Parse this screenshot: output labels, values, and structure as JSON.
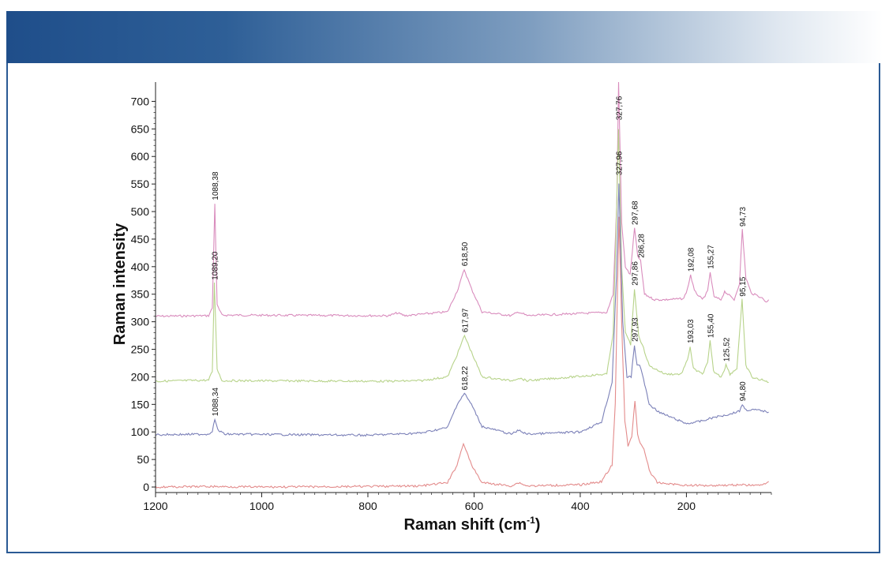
{
  "chart_data": {
    "type": "line",
    "xlabel": "Raman shift (cm",
    "xlabel_sup": "-1",
    "xlabel_end": ")",
    "ylabel": "Raman intensity",
    "xlim": [
      1200,
      40
    ],
    "ylim": [
      -10,
      735
    ],
    "x_ticks": [
      1200,
      1000,
      800,
      600,
      400,
      200
    ],
    "y_ticks": [
      0,
      50,
      100,
      150,
      200,
      250,
      300,
      350,
      400,
      450,
      500,
      550,
      600,
      650,
      700
    ],
    "grid": false,
    "series": [
      {
        "color": "#d98cbd",
        "points": [
          [
            1200,
            310
          ],
          [
            1100,
            311
          ],
          [
            1093,
            325
          ],
          [
            1088.38,
            515
          ],
          [
            1084,
            330
          ],
          [
            1075,
            312
          ],
          [
            760,
            311
          ],
          [
            745,
            316
          ],
          [
            730,
            311
          ],
          [
            650,
            318
          ],
          [
            630,
            360
          ],
          [
            618.5,
            395
          ],
          [
            605,
            360
          ],
          [
            585,
            318
          ],
          [
            530,
            311
          ],
          [
            516,
            318
          ],
          [
            500,
            311
          ],
          [
            350,
            317
          ],
          [
            338,
            350
          ],
          [
            331,
            520
          ],
          [
            327.76,
            735
          ],
          [
            322,
            480
          ],
          [
            315,
            400
          ],
          [
            306,
            385
          ],
          [
            297.68,
            470
          ],
          [
            292,
            420
          ],
          [
            286.28,
            410
          ],
          [
            279,
            350
          ],
          [
            260,
            340
          ],
          [
            240,
            340
          ],
          [
            205,
            342
          ],
          [
            198,
            360
          ],
          [
            192.08,
            385
          ],
          [
            185,
            356
          ],
          [
            170,
            340
          ],
          [
            160,
            355
          ],
          [
            155.27,
            390
          ],
          [
            148,
            345
          ],
          [
            135,
            340
          ],
          [
            128,
            355
          ],
          [
            122,
            350
          ],
          [
            110,
            340
          ],
          [
            100,
            370
          ],
          [
            94.73,
            467
          ],
          [
            88,
            380
          ],
          [
            78,
            352
          ],
          [
            60,
            345
          ],
          [
            50,
            336
          ],
          [
            45,
            340
          ]
        ]
      },
      {
        "color": "#b7d38a",
        "points": [
          [
            1200,
            192
          ],
          [
            1100,
            194
          ],
          [
            1093,
            210
          ],
          [
            1089.2,
            370
          ],
          [
            1084,
            215
          ],
          [
            1075,
            193
          ],
          [
            760,
            192
          ],
          [
            700,
            193
          ],
          [
            650,
            200
          ],
          [
            632,
            240
          ],
          [
            617.97,
            275
          ],
          [
            605,
            245
          ],
          [
            585,
            200
          ],
          [
            530,
            193
          ],
          [
            516,
            198
          ],
          [
            500,
            193
          ],
          [
            350,
            205
          ],
          [
            338,
            280
          ],
          [
            331,
            520
          ],
          [
            327.96,
            650
          ],
          [
            322,
            400
          ],
          [
            315,
            280
          ],
          [
            305,
            258
          ],
          [
            297.86,
            360
          ],
          [
            290,
            275
          ],
          [
            283,
            258
          ],
          [
            270,
            220
          ],
          [
            240,
            205
          ],
          [
            210,
            205
          ],
          [
            198,
            230
          ],
          [
            193.03,
            255
          ],
          [
            187,
            215
          ],
          [
            170,
            205
          ],
          [
            160,
            225
          ],
          [
            155.4,
            265
          ],
          [
            149,
            210
          ],
          [
            135,
            200
          ],
          [
            129,
            212
          ],
          [
            125.52,
            222
          ],
          [
            118,
            205
          ],
          [
            105,
            215
          ],
          [
            95.15,
            340
          ],
          [
            88,
            220
          ],
          [
            75,
            198
          ],
          [
            60,
            195
          ],
          [
            45,
            190
          ]
        ]
      },
      {
        "color": "#7b80b8",
        "points": [
          [
            1200,
            95
          ],
          [
            1100,
            96
          ],
          [
            1093,
            102
          ],
          [
            1088.34,
            123
          ],
          [
            1083,
            104
          ],
          [
            1070,
            96
          ],
          [
            800,
            94
          ],
          [
            700,
            98
          ],
          [
            650,
            108
          ],
          [
            632,
            150
          ],
          [
            618.22,
            170
          ],
          [
            605,
            150
          ],
          [
            585,
            110
          ],
          [
            530,
            96
          ],
          [
            516,
            103
          ],
          [
            500,
            96
          ],
          [
            400,
            100
          ],
          [
            360,
            118
          ],
          [
            340,
            190
          ],
          [
            332,
            380
          ],
          [
            327.2,
            550
          ],
          [
            320,
            300
          ],
          [
            312,
            200
          ],
          [
            304,
            200
          ],
          [
            297.93,
            258
          ],
          [
            293,
            220
          ],
          [
            288,
            222
          ],
          [
            283,
            205
          ],
          [
            270,
            150
          ],
          [
            250,
            135
          ],
          [
            200,
            115
          ],
          [
            170,
            120
          ],
          [
            150,
            126
          ],
          [
            120,
            132
          ],
          [
            100,
            138
          ],
          [
            94.8,
            150
          ],
          [
            88,
            140
          ],
          [
            70,
            140
          ],
          [
            55,
            138
          ],
          [
            45,
            136
          ]
        ]
      },
      {
        "color": "#e38b8b",
        "points": [
          [
            1200,
            0
          ],
          [
            1100,
            1
          ],
          [
            1000,
            0
          ],
          [
            800,
            1
          ],
          [
            700,
            2
          ],
          [
            650,
            8
          ],
          [
            632,
            40
          ],
          [
            620,
            80
          ],
          [
            605,
            40
          ],
          [
            585,
            8
          ],
          [
            530,
            2
          ],
          [
            516,
            8
          ],
          [
            500,
            2
          ],
          [
            400,
            4
          ],
          [
            360,
            10
          ],
          [
            340,
            40
          ],
          [
            334,
            150
          ],
          [
            331,
            300
          ],
          [
            327,
            490
          ],
          [
            322,
            300
          ],
          [
            316,
            120
          ],
          [
            310,
            75
          ],
          [
            303,
            90
          ],
          [
            297,
            158
          ],
          [
            292,
            95
          ],
          [
            287,
            80
          ],
          [
            280,
            70
          ],
          [
            270,
            30
          ],
          [
            255,
            8
          ],
          [
            200,
            3
          ],
          [
            150,
            3
          ],
          [
            100,
            4
          ],
          [
            60,
            3
          ],
          [
            45,
            10
          ]
        ]
      }
    ],
    "annotations": [
      {
        "text": "1088,38",
        "x": 1088.38,
        "y": 515
      },
      {
        "text": "1089,20",
        "x": 1089.2,
        "y": 370
      },
      {
        "text": "1088,34",
        "x": 1088.34,
        "y": 123
      },
      {
        "text": "618,50",
        "x": 618.5,
        "y": 395
      },
      {
        "text": "617,97",
        "x": 617.97,
        "y": 275
      },
      {
        "text": "618,22",
        "x": 618.22,
        "y": 170
      },
      {
        "text": "327,76",
        "x": 327.76,
        "y": 660
      },
      {
        "text": "327,96",
        "x": 327.96,
        "y": 560
      },
      {
        "text": "297,68",
        "x": 297.68,
        "y": 470
      },
      {
        "text": "286,28",
        "x": 286.28,
        "y": 410
      },
      {
        "text": "297,86",
        "x": 297.86,
        "y": 360
      },
      {
        "text": "297,93",
        "x": 297.93,
        "y": 258
      },
      {
        "text": "192,08",
        "x": 192.08,
        "y": 385
      },
      {
        "text": "155,27",
        "x": 155.27,
        "y": 390
      },
      {
        "text": "94,73",
        "x": 94.73,
        "y": 467
      },
      {
        "text": "95,15",
        "x": 95.15,
        "y": 340
      },
      {
        "text": "193,03",
        "x": 193.03,
        "y": 255
      },
      {
        "text": "155,40",
        "x": 155.4,
        "y": 265
      },
      {
        "text": "125,52",
        "x": 125.52,
        "y": 222
      },
      {
        "text": "94,80",
        "x": 94.8,
        "y": 150
      }
    ]
  }
}
